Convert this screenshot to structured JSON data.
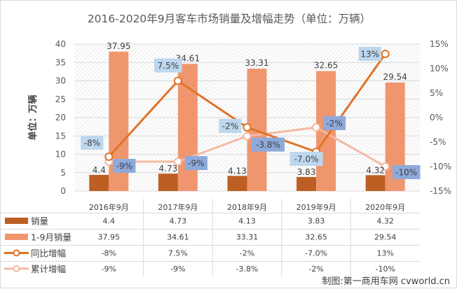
{
  "chart_data": {
    "type": "bar",
    "title": "2016-2020年9月客车市场销量及增幅走势（单位：万辆）",
    "ylabel": "单位：万辆",
    "xlabel": "",
    "categories": [
      "2016年9月",
      "2017年9月",
      "2018年9月",
      "2019年9月",
      "2020年9月"
    ],
    "ylim": [
      0,
      40
    ],
    "y_ticks": [
      "0",
      "5",
      "10",
      "15",
      "20",
      "25",
      "30",
      "35",
      "40"
    ],
    "y_tick_values": [
      0,
      5,
      10,
      15,
      20,
      25,
      30,
      35,
      40
    ],
    "y2lim": [
      -15,
      15
    ],
    "y2_ticks": [
      "-15%",
      "-10%",
      "-5%",
      "0%",
      "5%",
      "10%",
      "15%"
    ],
    "y2_tick_values": [
      -15,
      -10,
      -5,
      0,
      5,
      10,
      15
    ],
    "grid": true,
    "legend": "data-table-bottom",
    "series": [
      {
        "name": "销量",
        "kind": "bar",
        "axis": "left",
        "color": "#bd5f22",
        "values": [
          4.4,
          4.73,
          4.13,
          3.83,
          4.32
        ],
        "labels": [
          "4.4",
          "4.73",
          "4.13",
          "3.83",
          "4.32"
        ]
      },
      {
        "name": "1-9月销量",
        "kind": "bar",
        "axis": "left",
        "color": "#f0966e",
        "values": [
          37.95,
          34.61,
          33.31,
          32.65,
          29.54
        ],
        "labels": [
          "37.95",
          "34.61",
          "33.31",
          "32.65",
          "29.54"
        ]
      },
      {
        "name": "同比增幅",
        "kind": "line",
        "axis": "right",
        "color": "#e07328",
        "label_bg": "#bdd7ee",
        "values": [
          -8,
          7.5,
          -2,
          -7.0,
          13
        ],
        "labels": [
          "-8%",
          "7.5%",
          "-2%",
          "-7.0%",
          "13%"
        ]
      },
      {
        "name": "累计增幅",
        "kind": "line",
        "axis": "right",
        "color": "#f4b9a3",
        "label_bg": "#8eaadb",
        "values": [
          -9,
          -9,
          -3.8,
          -2,
          -10
        ],
        "labels": [
          "-9%",
          "-9%",
          "-3.8%",
          "-2%",
          "-10%"
        ]
      }
    ]
  },
  "credit": "制图:第一商用车网 cvworld.cn"
}
